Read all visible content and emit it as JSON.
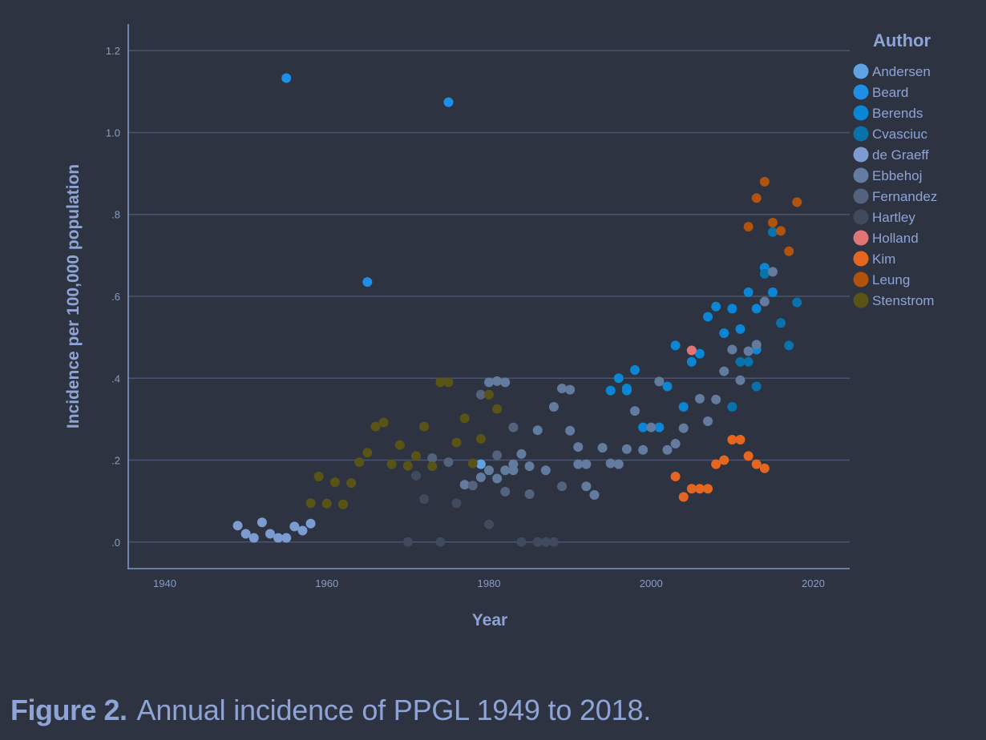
{
  "chart_data": {
    "type": "scatter",
    "title": "",
    "xlabel": "Year",
    "ylabel": "Incidence per 100,000 population",
    "xlim": [
      1935.5,
      2024.5
    ],
    "ylim": [
      -0.065,
      1.265
    ],
    "x_ticks": [
      1940,
      1960,
      1980,
      2000,
      2020
    ],
    "x_tick_labels": [
      "1940",
      "1960",
      "1980",
      "2000",
      "2020"
    ],
    "y_ticks": [
      0,
      0.2,
      0.4,
      0.6,
      0.8,
      1.0,
      1.2
    ],
    "y_tick_labels": [
      ".0",
      ".2",
      ".4",
      ".6",
      ".8",
      "1.0",
      "1.2"
    ],
    "grid": "horizontal",
    "legend_title": "Author",
    "legend_position": "right",
    "series": [
      {
        "name": "Andersen",
        "color": "#5fa3e3",
        "points": [
          [
            1979,
            0.19
          ]
        ]
      },
      {
        "name": "Beard",
        "color": "#1f8fe6",
        "points": [
          [
            1955,
            1.133
          ],
          [
            1965,
            0.635
          ],
          [
            1975,
            1.074
          ]
        ]
      },
      {
        "name": "Berends",
        "color": "#0b86d4",
        "points": [
          [
            1995,
            0.37
          ],
          [
            1996,
            0.4
          ],
          [
            1997,
            0.375
          ],
          [
            1997,
            0.37
          ],
          [
            1998,
            0.42
          ],
          [
            1999,
            0.28
          ],
          [
            2001,
            0.28
          ],
          [
            2002,
            0.38
          ],
          [
            2003,
            0.48
          ],
          [
            2004,
            0.33
          ],
          [
            2005,
            0.44
          ],
          [
            2006,
            0.46
          ],
          [
            2007,
            0.55
          ],
          [
            2008,
            0.575
          ],
          [
            2009,
            0.51
          ],
          [
            2010,
            0.57
          ],
          [
            2011,
            0.52
          ],
          [
            2012,
            0.61
          ],
          [
            2013,
            0.57
          ],
          [
            2013,
            0.47
          ],
          [
            2014,
            0.67
          ],
          [
            2015,
            0.61
          ]
        ]
      },
      {
        "name": "Cvasciuc",
        "color": "#0a72ab",
        "points": [
          [
            2010,
            0.33
          ],
          [
            2011,
            0.44
          ],
          [
            2012,
            0.44
          ],
          [
            2013,
            0.38
          ],
          [
            2014,
            0.655
          ],
          [
            2015,
            0.757
          ],
          [
            2016,
            0.535
          ],
          [
            2017,
            0.48
          ],
          [
            2018,
            0.585
          ]
        ]
      },
      {
        "name": "de Graeff",
        "color": "#7c9bd0",
        "points": [
          [
            1949,
            0.04
          ],
          [
            1950,
            0.02
          ],
          [
            1951,
            0.01
          ],
          [
            1952,
            0.048
          ],
          [
            1953,
            0.02
          ],
          [
            1954,
            0.01
          ],
          [
            1955,
            0.01
          ],
          [
            1956,
            0.038
          ],
          [
            1957,
            0.028
          ],
          [
            1958,
            0.045
          ]
        ]
      },
      {
        "name": "Ebbehoj",
        "color": "#637b9e",
        "points": [
          [
            1977,
            0.14
          ],
          [
            1979,
            0.158
          ],
          [
            1980,
            0.175
          ],
          [
            1980,
            0.39
          ],
          [
            1981,
            0.155
          ],
          [
            1981,
            0.393
          ],
          [
            1982,
            0.39
          ],
          [
            1982,
            0.175
          ],
          [
            1983,
            0.19
          ],
          [
            1983,
            0.175
          ],
          [
            1984,
            0.215
          ],
          [
            1985,
            0.185
          ],
          [
            1986,
            0.273
          ],
          [
            1987,
            0.175
          ],
          [
            1988,
            0.33
          ],
          [
            1989,
            0.375
          ],
          [
            1990,
            0.372
          ],
          [
            1990,
            0.272
          ],
          [
            1991,
            0.232
          ],
          [
            1991,
            0.19
          ],
          [
            1992,
            0.19
          ],
          [
            1992,
            0.136
          ],
          [
            1993,
            0.115
          ],
          [
            1994,
            0.23
          ],
          [
            1995,
            0.192
          ],
          [
            1996,
            0.19
          ],
          [
            1997,
            0.227
          ],
          [
            1998,
            0.32
          ],
          [
            1999,
            0.225
          ],
          [
            2000,
            0.28
          ],
          [
            2001,
            0.392
          ],
          [
            2002,
            0.225
          ],
          [
            2003,
            0.24
          ],
          [
            2004,
            0.278
          ],
          [
            2006,
            0.35
          ],
          [
            2007,
            0.295
          ],
          [
            2008,
            0.348
          ],
          [
            2009,
            0.417
          ],
          [
            2010,
            0.47
          ],
          [
            2011,
            0.395
          ],
          [
            2012,
            0.466
          ],
          [
            2013,
            0.482
          ],
          [
            2014,
            0.587
          ],
          [
            2015,
            0.66
          ]
        ]
      },
      {
        "name": "Fernandez",
        "color": "#53627d",
        "points": [
          [
            1973,
            0.205
          ],
          [
            1975,
            0.195
          ],
          [
            1978,
            0.138
          ],
          [
            1979,
            0.36
          ],
          [
            1981,
            0.212
          ],
          [
            1982,
            0.123
          ],
          [
            1983,
            0.28
          ],
          [
            1985,
            0.117
          ],
          [
            1989,
            0.136
          ]
        ]
      },
      {
        "name": "Hartley",
        "color": "#404a5e",
        "points": [
          [
            1970,
            0.0
          ],
          [
            1971,
            0.162
          ],
          [
            1972,
            0.105
          ],
          [
            1974,
            0.0
          ],
          [
            1976,
            0.095
          ],
          [
            1980,
            0.043
          ],
          [
            1984,
            0.0
          ],
          [
            1986,
            0.0
          ],
          [
            1987,
            0.0
          ],
          [
            1988,
            0.0
          ]
        ]
      },
      {
        "name": "Holland",
        "color": "#e07477",
        "points": [
          [
            2005,
            0.468
          ]
        ]
      },
      {
        "name": "Kim",
        "color": "#e5661e",
        "points": [
          [
            2003,
            0.16
          ],
          [
            2004,
            0.11
          ],
          [
            2005,
            0.13
          ],
          [
            2006,
            0.13
          ],
          [
            2007,
            0.13
          ],
          [
            2008,
            0.19
          ],
          [
            2009,
            0.2
          ],
          [
            2010,
            0.25
          ],
          [
            2011,
            0.25
          ],
          [
            2012,
            0.21
          ],
          [
            2013,
            0.19
          ],
          [
            2014,
            0.18
          ]
        ]
      },
      {
        "name": "Leung",
        "color": "#b0530d",
        "points": [
          [
            2012,
            0.77
          ],
          [
            2013,
            0.84
          ],
          [
            2014,
            0.88
          ],
          [
            2015,
            0.78
          ],
          [
            2016,
            0.76
          ],
          [
            2017,
            0.71
          ],
          [
            2018,
            0.83
          ]
        ]
      },
      {
        "name": "Stenstrom",
        "color": "#5a5316",
        "points": [
          [
            1958,
            0.095
          ],
          [
            1959,
            0.16
          ],
          [
            1960,
            0.094
          ],
          [
            1961,
            0.146
          ],
          [
            1962,
            0.092
          ],
          [
            1963,
            0.144
          ],
          [
            1964,
            0.195
          ],
          [
            1965,
            0.218
          ],
          [
            1966,
            0.282
          ],
          [
            1967,
            0.292
          ],
          [
            1968,
            0.19
          ],
          [
            1969,
            0.237
          ],
          [
            1970,
            0.186
          ],
          [
            1971,
            0.21
          ],
          [
            1972,
            0.282
          ],
          [
            1973,
            0.185
          ],
          [
            1974,
            0.39
          ],
          [
            1975,
            0.39
          ],
          [
            1976,
            0.243
          ],
          [
            1977,
            0.302
          ],
          [
            1978,
            0.192
          ],
          [
            1979,
            0.252
          ],
          [
            1980,
            0.36
          ],
          [
            1981,
            0.325
          ]
        ]
      }
    ]
  },
  "caption": {
    "figure_label": "Figure 2.",
    "text": "Annual incidence of PPGL 1949 to 2018."
  },
  "colors": {
    "background": "#2d3340",
    "axis": "#7e97c9",
    "grid": "#4a5470",
    "text": "#8ea3d6"
  }
}
